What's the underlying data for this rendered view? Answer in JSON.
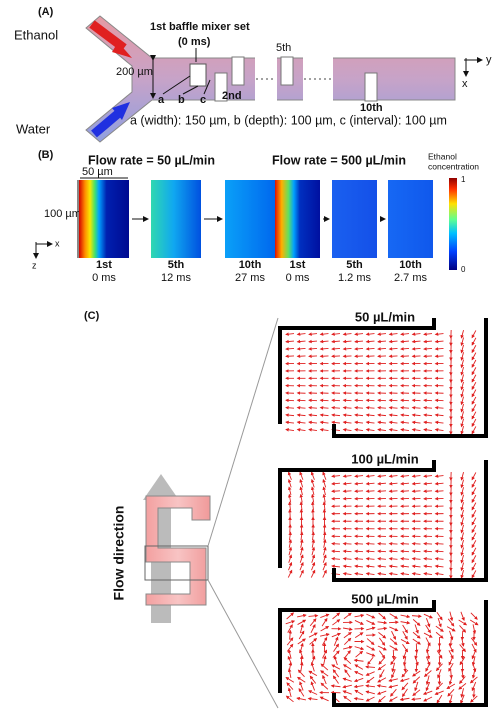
{
  "panel_a": {
    "label": "(A)",
    "ethanol": "Ethanol",
    "water": "Water",
    "mixer_set": "1st baffle mixer set",
    "mixer_time": "(0 ms)",
    "width_label": "200 µm",
    "baffle_2nd": "2nd",
    "baffle_5th": "5th",
    "baffle_10th": "10th",
    "dims": [
      "a",
      "b",
      "c"
    ],
    "axis_y": "y",
    "axis_x": "x",
    "caption": "a (width): 150 µm, b (depth): 100 µm, c (interval): 100 µm"
  },
  "panel_b": {
    "label": "(B)",
    "scale_x": "50 µm",
    "scale_y": "100 µm",
    "axis_x": "x",
    "axis_z": "z",
    "colorbar": {
      "title": [
        "Ethanol",
        "concentration"
      ],
      "max": "1",
      "min": "0"
    },
    "groups": [
      {
        "title": "Flow rate = 50 µL/min",
        "images": [
          {
            "name": "1st",
            "time": "0 ms"
          },
          {
            "name": "5th",
            "time": "12 ms"
          },
          {
            "name": "10th",
            "time": "27 ms"
          }
        ]
      },
      {
        "title": "Flow rate = 500 µL/min",
        "images": [
          {
            "name": "1st",
            "time": "0 ms"
          },
          {
            "name": "5th",
            "time": "1.2 ms"
          },
          {
            "name": "10th",
            "time": "2.7 ms"
          }
        ]
      }
    ]
  },
  "panel_c": {
    "label": "(C)",
    "flow_direction": "Flow direction",
    "panels": [
      "50 µL/min",
      "100 µL/min",
      "500 µL/min"
    ]
  }
}
